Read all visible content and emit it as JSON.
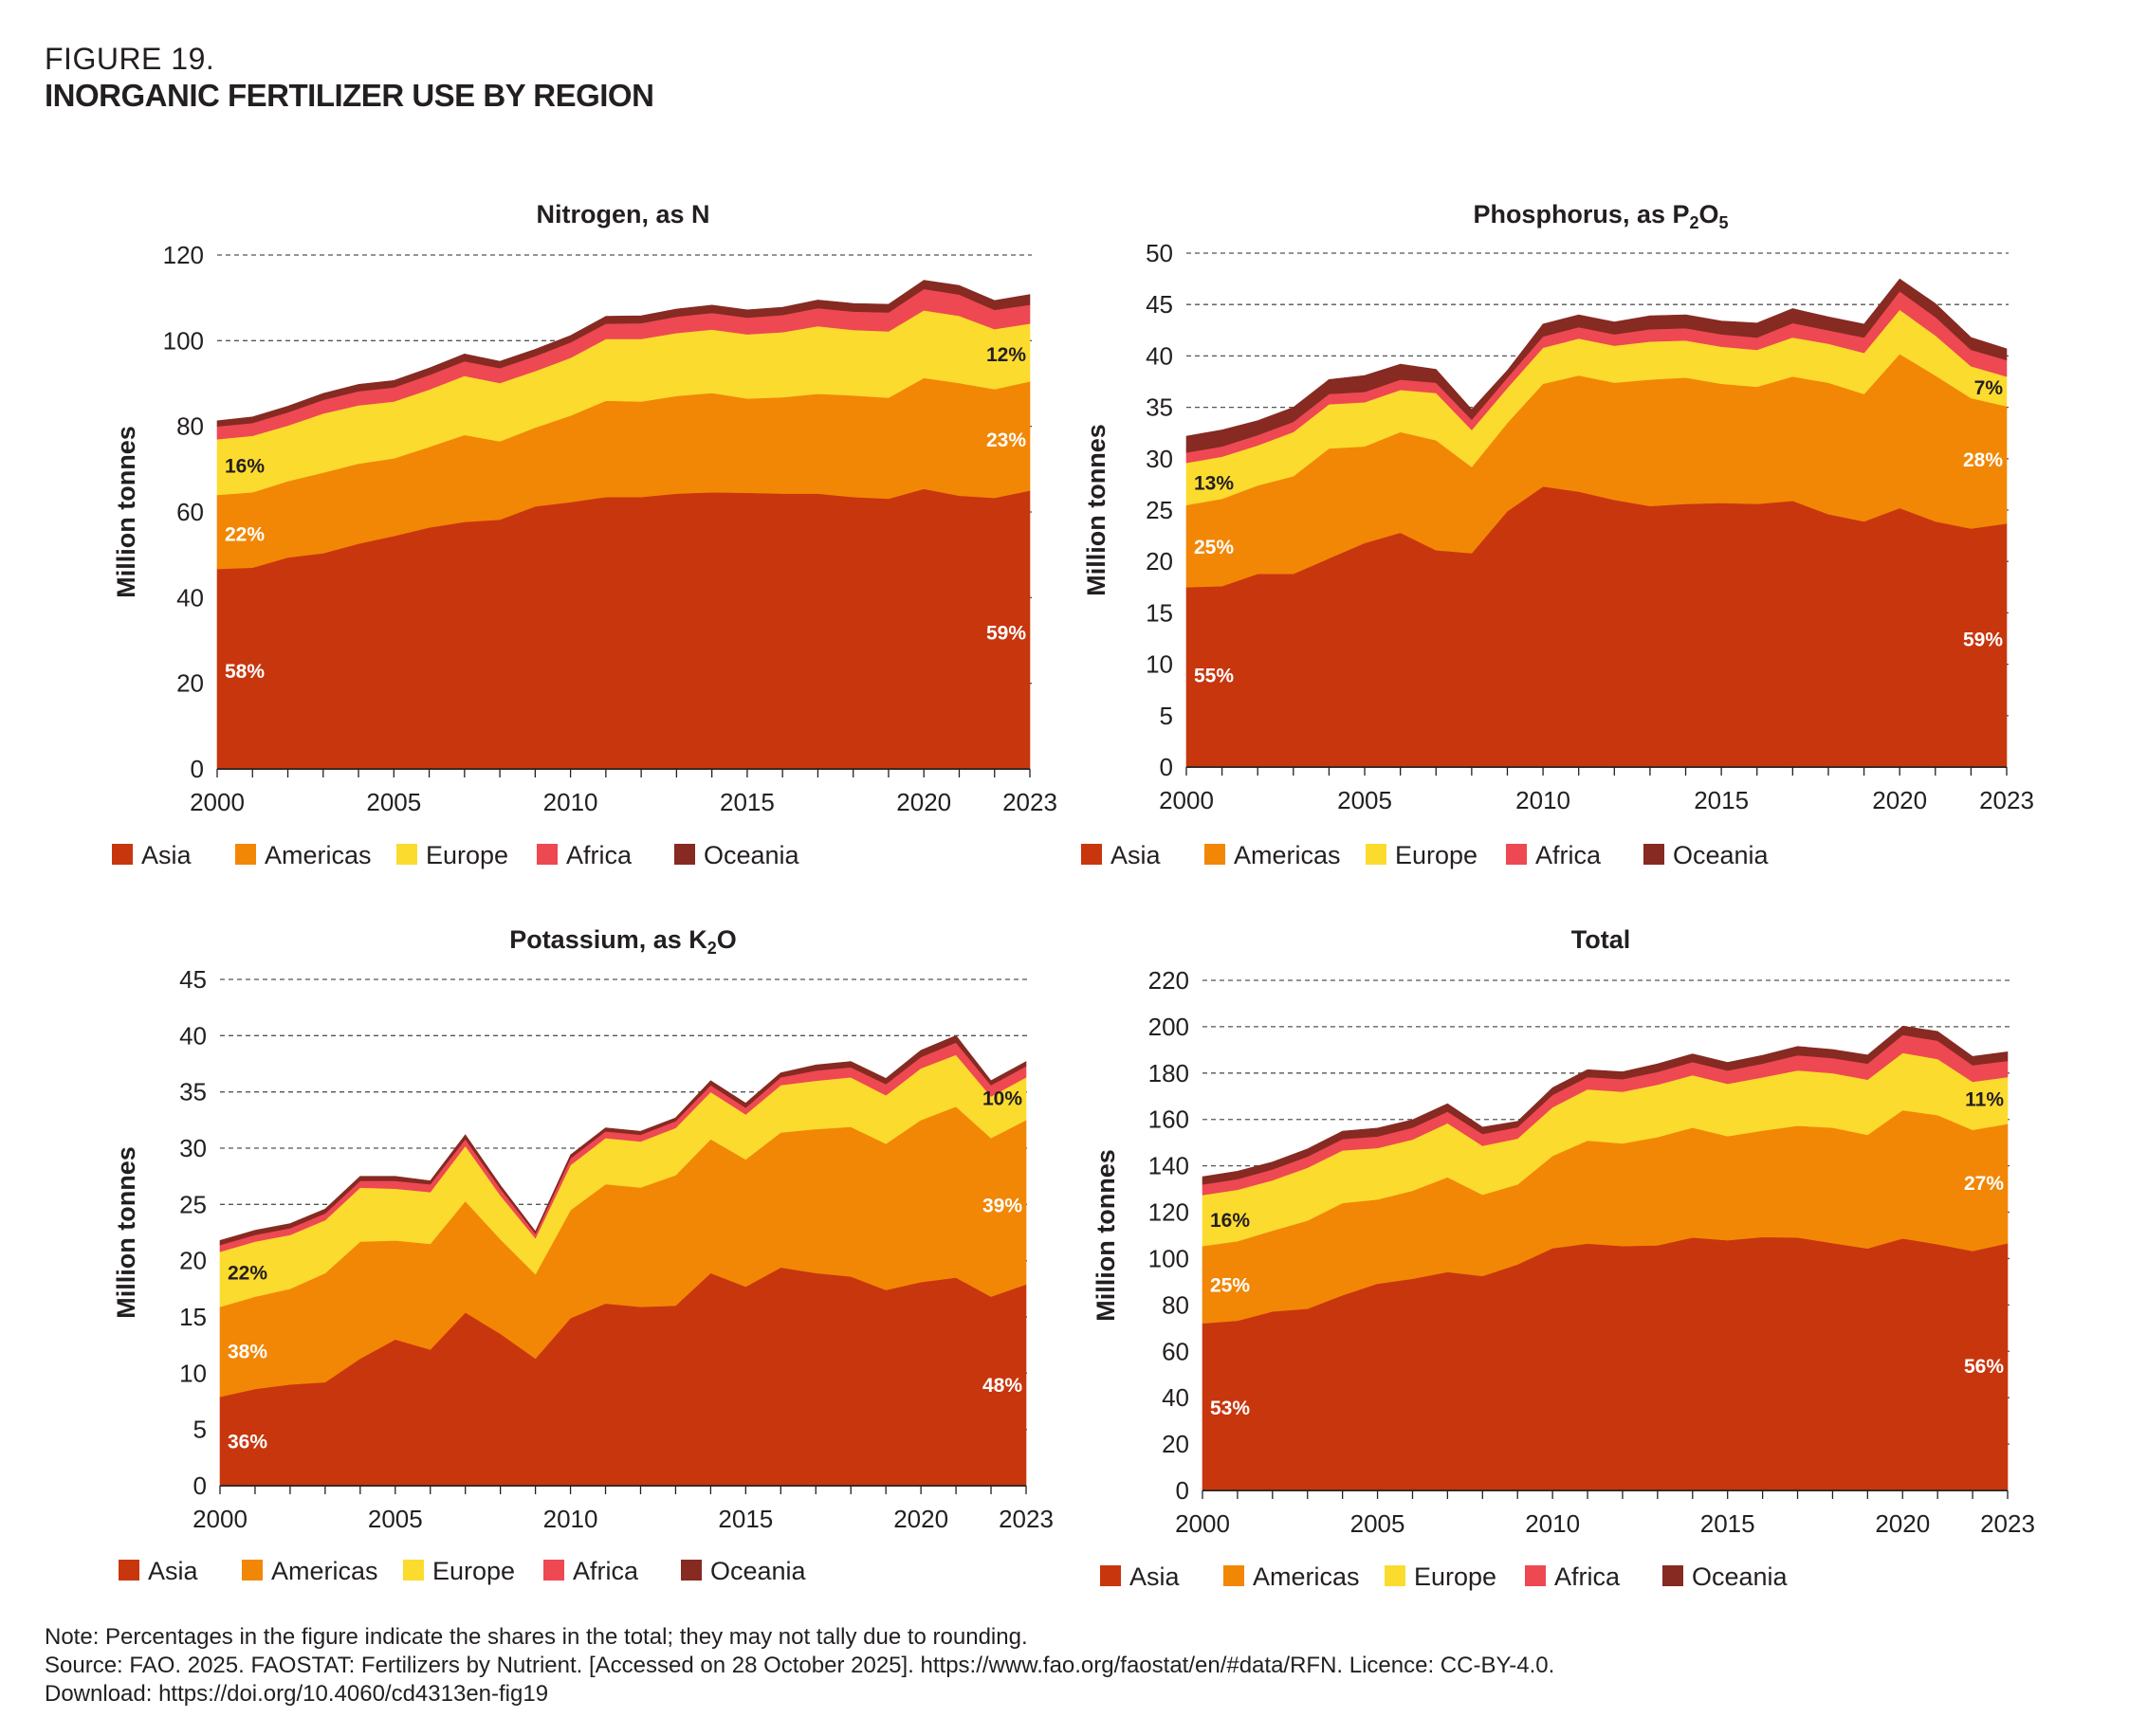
{
  "figure": {
    "label": "FIGURE 19.",
    "title": "INORGANIC FERTILIZER USE BY REGION"
  },
  "colors": {
    "Asia": "#C8360E",
    "Americas": "#F28705",
    "Europe": "#FCDB2F",
    "Africa": "#EE4852",
    "Oceania": "#862A22"
  },
  "notes": {
    "note": "Note: Percentages in the figure indicate the shares in the total; they may not tally due to rounding.",
    "source": "Source: FAO. 2025. FAOSTAT: Fertilizers by Nutrient. [Accessed on 28 October 2025]. https://www.fao.org/faostat/en/#data/RFN. Licence: CC-BY-4.0.",
    "download": "Download: https://doi.org/10.4060/cd4313en-fig19"
  },
  "chart_data": [
    {
      "type": "area",
      "stacked": true,
      "title": "Nitrogen, as N",
      "title_sub": null,
      "ylabel": "Million tonnes",
      "xlabel": "",
      "ylim": [
        0,
        120
      ],
      "yticks": [
        0,
        20,
        40,
        60,
        80,
        100,
        120
      ],
      "xticks": [
        2000,
        2005,
        2010,
        2015,
        2020,
        2023
      ],
      "grid": true,
      "legend": "bottom",
      "x": [
        2000,
        2001,
        2002,
        2003,
        2004,
        2005,
        2006,
        2007,
        2008,
        2009,
        2010,
        2011,
        2012,
        2013,
        2014,
        2015,
        2016,
        2017,
        2018,
        2019,
        2020,
        2021,
        2022,
        2023
      ],
      "series": [
        {
          "name": "Asia",
          "values": [
            46.7,
            47.0,
            49.4,
            50.4,
            52.6,
            54.4,
            56.4,
            57.7,
            58.2,
            61.3,
            62.3,
            63.5,
            63.5,
            64.3,
            64.6,
            64.5,
            64.3,
            64.3,
            63.5,
            63.1,
            65.4,
            63.8,
            63.3,
            65.0
          ]
        },
        {
          "name": "Americas",
          "values": [
            17.3,
            17.6,
            17.8,
            18.8,
            18.7,
            18.1,
            18.8,
            20.3,
            18.3,
            18.4,
            20.2,
            22.5,
            22.3,
            22.8,
            23.2,
            22.0,
            22.5,
            23.3,
            23.7,
            23.6,
            25.9,
            26.3,
            25.4,
            25.5
          ]
        },
        {
          "name": "Europe",
          "values": [
            13.0,
            13.2,
            13.0,
            13.8,
            13.6,
            13.3,
            13.4,
            13.8,
            13.6,
            13.2,
            13.5,
            14.4,
            14.6,
            14.7,
            14.8,
            15.0,
            15.2,
            15.8,
            15.3,
            15.5,
            15.8,
            15.7,
            14.0,
            13.5
          ]
        },
        {
          "name": "Africa",
          "values": [
            3.0,
            3.0,
            3.1,
            3.2,
            3.3,
            3.3,
            3.4,
            3.4,
            3.5,
            3.5,
            3.6,
            3.6,
            3.7,
            3.8,
            3.9,
            3.9,
            4.0,
            4.2,
            4.3,
            4.4,
            5.0,
            5.0,
            4.5,
            4.4
          ]
        },
        {
          "name": "Oceania",
          "values": [
            1.3,
            1.4,
            1.4,
            1.5,
            1.6,
            1.6,
            1.6,
            1.7,
            1.6,
            1.6,
            1.6,
            1.7,
            1.7,
            1.8,
            1.8,
            1.8,
            1.8,
            1.9,
            1.9,
            1.9,
            2.0,
            2.1,
            2.2,
            2.4
          ]
        }
      ],
      "annotations": [
        {
          "label": "58%",
          "series": "Asia",
          "year": 2000,
          "at_value": 23,
          "color": "#ffffff"
        },
        {
          "label": "22%",
          "series": "Americas",
          "year": 2000,
          "at_value": 55,
          "color": "#ffffff"
        },
        {
          "label": "16%",
          "series": "Europe",
          "year": 2000,
          "at_value": 71,
          "color": "#231f20"
        },
        {
          "label": "59%",
          "series": "Asia",
          "year": 2023,
          "at_value": 32,
          "color": "#ffffff"
        },
        {
          "label": "23%",
          "series": "Americas",
          "year": 2023,
          "at_value": 77,
          "color": "#ffffff"
        },
        {
          "label": "12%",
          "series": "Europe",
          "year": 2023,
          "at_value": 97,
          "color": "#231f20"
        }
      ]
    },
    {
      "type": "area",
      "stacked": true,
      "title": "Phosphorus, as P",
      "title_sub": {
        "main": "Phosphorus, as P",
        "sub1": "2",
        "mid": "O",
        "sub2": "5"
      },
      "ylabel": "Million tonnes",
      "xlabel": "",
      "ylim": [
        0,
        50
      ],
      "yticks": [
        0,
        5,
        10,
        15,
        20,
        25,
        30,
        35,
        40,
        45,
        50
      ],
      "xticks": [
        2000,
        2005,
        2010,
        2015,
        2020,
        2023
      ],
      "grid": true,
      "legend": "bottom",
      "x": [
        2000,
        2001,
        2002,
        2003,
        2004,
        2005,
        2006,
        2007,
        2008,
        2009,
        2010,
        2011,
        2012,
        2013,
        2014,
        2015,
        2016,
        2017,
        2018,
        2019,
        2020,
        2021,
        2022,
        2023
      ],
      "series": [
        {
          "name": "Asia",
          "values": [
            17.5,
            17.6,
            18.8,
            18.8,
            20.3,
            21.8,
            22.8,
            21.1,
            20.8,
            24.9,
            27.3,
            26.8,
            26.0,
            25.4,
            25.6,
            25.7,
            25.6,
            25.9,
            24.6,
            23.9,
            25.2,
            23.9,
            23.2,
            23.7
          ]
        },
        {
          "name": "Americas",
          "values": [
            8.0,
            8.5,
            8.6,
            9.5,
            10.7,
            9.4,
            9.8,
            10.7,
            8.4,
            8.6,
            10.0,
            11.3,
            11.4,
            12.3,
            12.3,
            11.6,
            11.4,
            12.1,
            12.8,
            12.4,
            15.0,
            14.2,
            12.7,
            11.4
          ]
        },
        {
          "name": "Europe",
          "values": [
            4.1,
            4.1,
            3.9,
            4.3,
            4.3,
            4.3,
            4.1,
            4.6,
            3.6,
            3.4,
            3.5,
            3.6,
            3.6,
            3.7,
            3.6,
            3.6,
            3.6,
            3.8,
            3.8,
            4.0,
            4.3,
            3.9,
            3.1,
            2.9
          ]
        },
        {
          "name": "Africa",
          "values": [
            1.0,
            1.0,
            1.0,
            1.0,
            1.0,
            1.0,
            1.0,
            1.0,
            1.0,
            1.0,
            1.1,
            1.1,
            1.1,
            1.2,
            1.2,
            1.2,
            1.2,
            1.4,
            1.3,
            1.5,
            1.8,
            1.8,
            1.6,
            1.6
          ]
        },
        {
          "name": "Oceania",
          "values": [
            1.6,
            1.6,
            1.4,
            1.4,
            1.4,
            1.6,
            1.5,
            1.3,
            1.0,
            0.7,
            1.2,
            1.2,
            1.2,
            1.3,
            1.3,
            1.3,
            1.4,
            1.4,
            1.3,
            1.3,
            1.2,
            1.3,
            1.2,
            1.1
          ]
        }
      ],
      "annotations": [
        {
          "label": "55%",
          "series": "Asia",
          "year": 2000,
          "at_value": 9,
          "color": "#ffffff"
        },
        {
          "label": "25%",
          "series": "Americas",
          "year": 2000,
          "at_value": 21.5,
          "color": "#ffffff"
        },
        {
          "label": "13%",
          "series": "Europe",
          "year": 2000,
          "at_value": 27.7,
          "color": "#231f20"
        },
        {
          "label": "59%",
          "series": "Asia",
          "year": 2023,
          "at_value": 12.5,
          "color": "#ffffff"
        },
        {
          "label": "28%",
          "series": "Americas",
          "year": 2023,
          "at_value": 30,
          "color": "#ffffff"
        },
        {
          "label": "7%",
          "series": "Europe",
          "year": 2023,
          "at_value": 37,
          "color": "#231f20"
        }
      ]
    },
    {
      "type": "area",
      "stacked": true,
      "title": "Potassium, as K",
      "title_sub": {
        "main": "Potassium, as K",
        "sub1": "2",
        "mid": "O",
        "sub2": ""
      },
      "ylabel": "Million tonnes",
      "xlabel": "",
      "ylim": [
        0,
        45
      ],
      "yticks": [
        0,
        5,
        10,
        15,
        20,
        25,
        30,
        35,
        40,
        45
      ],
      "xticks": [
        2000,
        2005,
        2010,
        2015,
        2020,
        2023
      ],
      "grid": true,
      "legend": "bottom",
      "x": [
        2000,
        2001,
        2002,
        2003,
        2004,
        2005,
        2006,
        2007,
        2008,
        2009,
        2010,
        2011,
        2012,
        2013,
        2014,
        2015,
        2016,
        2017,
        2018,
        2019,
        2020,
        2021,
        2022,
        2023
      ],
      "series": [
        {
          "name": "Asia",
          "values": [
            7.9,
            8.6,
            9.0,
            9.2,
            11.3,
            13.0,
            12.1,
            15.4,
            13.5,
            11.3,
            14.9,
            16.2,
            15.9,
            16.0,
            18.9,
            17.7,
            19.4,
            18.9,
            18.6,
            17.4,
            18.1,
            18.5,
            16.8,
            17.9
          ]
        },
        {
          "name": "Americas",
          "values": [
            8.0,
            8.2,
            8.5,
            9.7,
            10.4,
            8.8,
            9.4,
            9.9,
            8.4,
            7.5,
            9.6,
            10.6,
            10.6,
            11.6,
            11.9,
            11.3,
            12.0,
            12.8,
            13.3,
            13.0,
            14.4,
            15.2,
            14.1,
            14.6
          ]
        },
        {
          "name": "Europe",
          "values": [
            4.9,
            4.9,
            4.8,
            4.7,
            4.8,
            4.6,
            4.6,
            4.9,
            3.9,
            3.2,
            4.0,
            4.1,
            4.1,
            4.2,
            4.2,
            4.0,
            4.2,
            4.3,
            4.4,
            4.3,
            4.6,
            4.6,
            3.7,
            3.8
          ]
        },
        {
          "name": "Africa",
          "values": [
            0.6,
            0.6,
            0.6,
            0.6,
            0.6,
            0.7,
            0.7,
            0.6,
            0.6,
            0.4,
            0.6,
            0.6,
            0.6,
            0.6,
            0.6,
            0.6,
            0.7,
            0.9,
            0.9,
            1.0,
            1.0,
            1.1,
            1.0,
            1.0
          ]
        },
        {
          "name": "Oceania",
          "values": [
            0.4,
            0.4,
            0.4,
            0.4,
            0.4,
            0.4,
            0.3,
            0.4,
            0.3,
            0.2,
            0.3,
            0.3,
            0.3,
            0.3,
            0.4,
            0.4,
            0.4,
            0.5,
            0.5,
            0.5,
            0.6,
            0.6,
            0.4,
            0.4
          ]
        }
      ],
      "annotations": [
        {
          "label": "36%",
          "series": "Asia",
          "year": 2000,
          "at_value": 4,
          "color": "#ffffff"
        },
        {
          "label": "38%",
          "series": "Americas",
          "year": 2000,
          "at_value": 12,
          "color": "#ffffff"
        },
        {
          "label": "22%",
          "series": "Europe",
          "year": 2000,
          "at_value": 19,
          "color": "#231f20"
        },
        {
          "label": "48%",
          "series": "Asia",
          "year": 2023,
          "at_value": 9,
          "color": "#ffffff"
        },
        {
          "label": "39%",
          "series": "Americas",
          "year": 2023,
          "at_value": 25,
          "color": "#ffffff"
        },
        {
          "label": "10%",
          "series": "Europe",
          "year": 2023,
          "at_value": 34.5,
          "color": "#231f20"
        }
      ]
    },
    {
      "type": "area",
      "stacked": true,
      "title": "Total",
      "title_sub": null,
      "ylabel": "Million tonnes",
      "xlabel": "",
      "ylim": [
        0,
        220
      ],
      "yticks": [
        0,
        20,
        40,
        60,
        80,
        100,
        120,
        140,
        160,
        180,
        200,
        220
      ],
      "xticks": [
        2000,
        2005,
        2010,
        2015,
        2020,
        2023
      ],
      "grid": true,
      "legend": "bottom",
      "x": [
        2000,
        2001,
        2002,
        2003,
        2004,
        2005,
        2006,
        2007,
        2008,
        2009,
        2010,
        2011,
        2012,
        2013,
        2014,
        2015,
        2016,
        2017,
        2018,
        2019,
        2020,
        2021,
        2022,
        2023
      ],
      "series": [
        {
          "name": "Asia",
          "values": [
            72.1,
            73.2,
            77.2,
            78.4,
            84.2,
            89.2,
            91.3,
            94.2,
            92.5,
            97.5,
            104.5,
            106.5,
            105.4,
            105.7,
            109.1,
            107.9,
            109.3,
            109.1,
            106.7,
            104.4,
            108.7,
            106.2,
            103.3,
            106.6
          ]
        },
        {
          "name": "Americas",
          "values": [
            33.3,
            34.3,
            34.9,
            38.0,
            39.8,
            36.3,
            38.0,
            40.9,
            35.1,
            34.5,
            39.8,
            44.4,
            44.3,
            46.7,
            47.4,
            44.9,
            45.9,
            48.2,
            49.8,
            49.0,
            55.3,
            55.7,
            52.2,
            51.5
          ]
        },
        {
          "name": "Europe",
          "values": [
            22.0,
            22.2,
            21.7,
            22.8,
            22.7,
            22.2,
            22.1,
            23.3,
            21.1,
            19.8,
            21.0,
            22.1,
            22.3,
            22.6,
            22.6,
            22.6,
            23.0,
            23.9,
            23.5,
            23.8,
            24.7,
            24.2,
            20.8,
            20.2
          ]
        },
        {
          "name": "Africa",
          "values": [
            4.6,
            4.6,
            4.7,
            4.8,
            4.9,
            5.0,
            5.1,
            5.0,
            5.1,
            4.9,
            5.3,
            5.3,
            5.4,
            5.6,
            5.7,
            5.7,
            5.9,
            6.5,
            6.5,
            6.9,
            7.8,
            7.9,
            7.1,
            7.0
          ]
        },
        {
          "name": "Oceania",
          "values": [
            3.3,
            3.4,
            3.2,
            3.3,
            3.4,
            3.6,
            3.4,
            3.4,
            2.9,
            2.5,
            3.1,
            3.2,
            3.2,
            3.4,
            3.5,
            3.5,
            3.6,
            3.8,
            3.7,
            3.7,
            3.8,
            4.0,
            3.8,
            3.9
          ]
        }
      ],
      "annotations": [
        {
          "label": "53%",
          "series": "Asia",
          "year": 2000,
          "at_value": 36,
          "color": "#ffffff"
        },
        {
          "label": "25%",
          "series": "Americas",
          "year": 2000,
          "at_value": 89,
          "color": "#ffffff"
        },
        {
          "label": "16%",
          "series": "Europe",
          "year": 2000,
          "at_value": 117,
          "color": "#231f20"
        },
        {
          "label": "56%",
          "series": "Asia",
          "year": 2023,
          "at_value": 54,
          "color": "#ffffff"
        },
        {
          "label": "27%",
          "series": "Americas",
          "year": 2023,
          "at_value": 133,
          "color": "#ffffff"
        },
        {
          "label": "11%",
          "series": "Europe",
          "year": 2023,
          "at_value": 169,
          "color": "#231f20"
        }
      ]
    }
  ]
}
